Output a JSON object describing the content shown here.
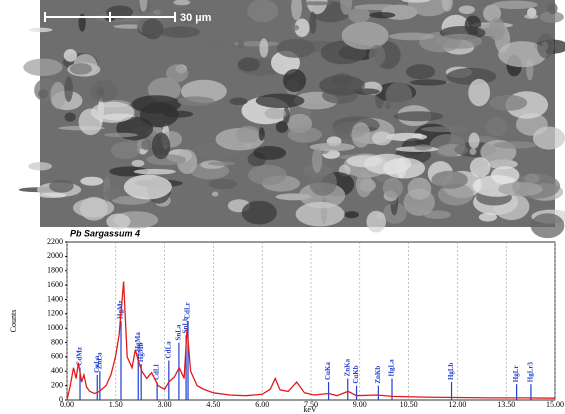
{
  "micrograph": {
    "scale_label": "30 µm"
  },
  "chart_data": {
    "type": "line",
    "title": "Pb Sargassum 4",
    "x_label": "keV",
    "y_label": "Counts",
    "xlim": [
      0,
      15
    ],
    "ylim": [
      0,
      2200
    ],
    "xticks": [
      {
        "value": 0,
        "label": "0.00"
      },
      {
        "value": 1.5,
        "label": "1.50"
      },
      {
        "value": 3,
        "label": "3.00"
      },
      {
        "value": 4.5,
        "label": "4.50"
      },
      {
        "value": 6,
        "label": "6.00"
      },
      {
        "value": 7.5,
        "label": "7.50"
      },
      {
        "value": 9,
        "label": "9.00"
      },
      {
        "value": 10.5,
        "label": "10.50"
      },
      {
        "value": 12,
        "label": "12.00"
      },
      {
        "value": 13.5,
        "label": "13.50"
      },
      {
        "value": 15,
        "label": "15.00"
      }
    ],
    "yticks": [
      0,
      200,
      400,
      600,
      800,
      1000,
      1200,
      1400,
      1600,
      1800,
      2000,
      2200
    ],
    "grid": true,
    "x": [
      0,
      0.1,
      0.2,
      0.28,
      0.35,
      0.45,
      0.52,
      0.6,
      0.7,
      0.85,
      1.0,
      1.2,
      1.35,
      1.49,
      1.6,
      1.74,
      1.85,
      2.0,
      2.1,
      2.19,
      2.3,
      2.45,
      2.6,
      2.8,
      3.0,
      3.13,
      3.3,
      3.45,
      3.6,
      3.69,
      3.8,
      4.0,
      4.2,
      4.5,
      5.0,
      5.5,
      6.0,
      6.25,
      6.4,
      6.55,
      6.8,
      7.06,
      7.3,
      7.6,
      8.05,
      8.3,
      8.64,
      8.9,
      9.5,
      10.0,
      11,
      12,
      13,
      14,
      15
    ],
    "series": [
      {
        "color": "#e31a1c",
        "values": [
          0,
          200,
          450,
          300,
          520,
          250,
          350,
          180,
          120,
          90,
          120,
          200,
          350,
          600,
          900,
          1650,
          600,
          450,
          700,
          550,
          400,
          300,
          380,
          200,
          150,
          250,
          320,
          450,
          300,
          1000,
          400,
          200,
          150,
          100,
          70,
          60,
          80,
          150,
          300,
          140,
          120,
          250,
          100,
          70,
          90,
          60,
          120,
          60,
          70,
          50,
          40,
          35,
          30,
          30,
          25
        ]
      }
    ],
    "peak_markers": {
      "color": "#1f3fd0",
      "items": [
        {
          "label": "CdMz",
          "energy": 0.4,
          "counts": 450
        },
        {
          "label": "CuLa",
          "energy": 0.93,
          "counts": 350
        },
        {
          "label": "ZnLa",
          "energy": 1.01,
          "counts": 400
        },
        {
          "label": "HgMz",
          "energy": 1.66,
          "counts": 1100
        },
        {
          "label": "HgMa",
          "energy": 2.19,
          "counts": 650
        },
        {
          "label": "HgMb",
          "energy": 2.28,
          "counts": 500
        },
        {
          "label": "CdLl",
          "energy": 2.77,
          "counts": 250
        },
        {
          "label": "CdLa",
          "energy": 3.13,
          "counts": 550
        },
        {
          "label": "SnLa",
          "energy": 3.44,
          "counts": 800
        },
        {
          "label": "SnLb",
          "energy": 3.66,
          "counts": 900
        },
        {
          "label": "CdLr",
          "energy": 3.72,
          "counts": 1100
        },
        {
          "label": "CuKa",
          "energy": 8.04,
          "counts": 250
        },
        {
          "label": "ZnKa",
          "energy": 8.63,
          "counts": 300
        },
        {
          "label": "CuKb",
          "energy": 8.9,
          "counts": 200
        },
        {
          "label": "ZnKb",
          "energy": 9.57,
          "counts": 200
        },
        {
          "label": "HgLa",
          "energy": 9.99,
          "counts": 300
        },
        {
          "label": "HgLb",
          "energy": 11.82,
          "counts": 250
        },
        {
          "label": "HgLr",
          "energy": 13.82,
          "counts": 220
        },
        {
          "label": "HgLr3",
          "energy": 14.26,
          "counts": 220
        }
      ]
    }
  }
}
